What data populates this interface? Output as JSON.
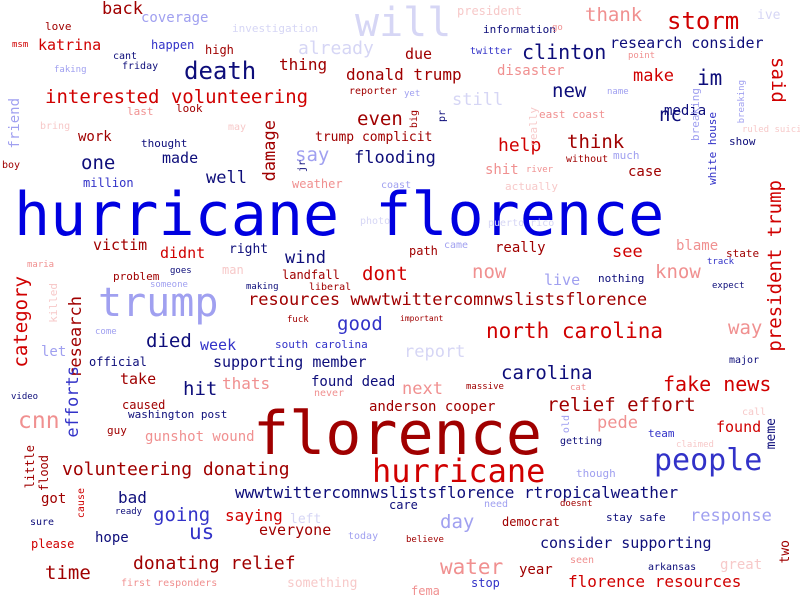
{
  "colors": {
    "dark_blue": "#0d0d7a",
    "mid_blue": "#3232c8",
    "blue": "#0000e0",
    "light_blue": "#a0a0f0",
    "pale_blue": "#d6d6f5",
    "dark_red": "#a00000",
    "red": "#d00000",
    "light_red": "#f09090",
    "pale_red": "#f7c9c9"
  },
  "words": [
    {
      "text": "hurricane florence",
      "color": "blue"
    },
    {
      "text": "florence",
      "color": "dark_red"
    },
    {
      "text": "trump",
      "color": "light_blue"
    },
    {
      "text": "hurricane",
      "color": "red"
    },
    {
      "text": "will",
      "color": "pale_blue"
    },
    {
      "text": "people",
      "color": "mid_blue"
    },
    {
      "text": "storm",
      "color": "red"
    },
    {
      "text": "death",
      "color": "dark_blue"
    },
    {
      "text": "resources wwwtwittercomnwslistsflorence",
      "color": "dark_red"
    },
    {
      "text": "interested volunteering",
      "color": "red"
    },
    {
      "text": "wwwtwittercomnwslistsflorence rtropicalweather",
      "color": "dark_blue"
    },
    {
      "text": "north carolina",
      "color": "red"
    },
    {
      "text": "volunteering donating",
      "color": "dark_red"
    },
    {
      "text": "donating relief",
      "color": "dark_red"
    },
    {
      "text": "fake news",
      "color": "red"
    },
    {
      "text": "relief effort",
      "color": "dark_red"
    },
    {
      "text": "clinton",
      "color": "dark_blue"
    },
    {
      "text": "research consider",
      "color": "dark_blue"
    },
    {
      "text": "thank",
      "color": "light_red"
    },
    {
      "text": "already",
      "color": "pale_blue"
    },
    {
      "text": "back",
      "color": "dark_red"
    },
    {
      "text": "coverage",
      "color": "light_blue"
    },
    {
      "text": "donald trump",
      "color": "dark_red"
    },
    {
      "text": "thing",
      "color": "dark_red"
    },
    {
      "text": "disaster",
      "color": "light_red"
    },
    {
      "text": "make",
      "color": "red"
    },
    {
      "text": "im",
      "color": "dark_blue"
    },
    {
      "text": "new",
      "color": "dark_blue"
    },
    {
      "text": "still",
      "color": "pale_blue"
    },
    {
      "text": "even",
      "color": "dark_red"
    },
    {
      "text": "one",
      "color": "dark_blue"
    },
    {
      "text": "made",
      "color": "dark_blue"
    },
    {
      "text": "well",
      "color": "dark_blue"
    },
    {
      "text": "say",
      "color": "light_blue"
    },
    {
      "text": "flooding",
      "color": "dark_blue"
    },
    {
      "text": "help",
      "color": "red"
    },
    {
      "text": "think",
      "color": "dark_red"
    },
    {
      "text": "nc",
      "color": "dark_blue"
    },
    {
      "text": "media",
      "color": "dark_blue"
    },
    {
      "text": "case",
      "color": "dark_red"
    },
    {
      "text": "work",
      "color": "dark_red"
    },
    {
      "text": "victim",
      "color": "dark_red"
    },
    {
      "text": "didnt",
      "color": "red"
    },
    {
      "text": "right",
      "color": "dark_blue"
    },
    {
      "text": "wind",
      "color": "dark_blue"
    },
    {
      "text": "dont",
      "color": "red"
    },
    {
      "text": "now",
      "color": "light_red"
    },
    {
      "text": "see",
      "color": "red"
    },
    {
      "text": "know",
      "color": "light_red"
    },
    {
      "text": "blame",
      "color": "light_red"
    },
    {
      "text": "really",
      "color": "dark_red"
    },
    {
      "text": "good",
      "color": "mid_blue"
    },
    {
      "text": "died",
      "color": "dark_blue"
    },
    {
      "text": "week",
      "color": "mid_blue"
    },
    {
      "text": "supporting member",
      "color": "dark_blue"
    },
    {
      "text": "report",
      "color": "pale_blue"
    },
    {
      "text": "carolina",
      "color": "dark_blue"
    },
    {
      "text": "way",
      "color": "light_red"
    },
    {
      "text": "hit",
      "color": "dark_blue"
    },
    {
      "text": "thats",
      "color": "light_red"
    },
    {
      "text": "found dead",
      "color": "dark_blue"
    },
    {
      "text": "next",
      "color": "light_red"
    },
    {
      "text": "take",
      "color": "dark_red"
    },
    {
      "text": "anderson cooper",
      "color": "dark_red"
    },
    {
      "text": "pede",
      "color": "light_red"
    },
    {
      "text": "found",
      "color": "red"
    },
    {
      "text": "cnn",
      "color": "light_red"
    },
    {
      "text": "gunshot wound",
      "color": "light_red"
    },
    {
      "text": "going",
      "color": "mid_blue"
    },
    {
      "text": "saying",
      "color": "red"
    },
    {
      "text": "bad",
      "color": "dark_blue"
    },
    {
      "text": "us",
      "color": "mid_blue"
    },
    {
      "text": "everyone",
      "color": "dark_red"
    },
    {
      "text": "day",
      "color": "light_blue"
    },
    {
      "text": "response",
      "color": "light_blue"
    },
    {
      "text": "hope",
      "color": "dark_blue"
    },
    {
      "text": "time",
      "color": "dark_red"
    },
    {
      "text": "water",
      "color": "light_red"
    },
    {
      "text": "consider supporting",
      "color": "dark_blue"
    },
    {
      "text": "year",
      "color": "dark_red"
    },
    {
      "text": "florence resources",
      "color": "red"
    },
    {
      "text": "got",
      "color": "dark_red"
    },
    {
      "text": "please",
      "color": "red"
    },
    {
      "text": "something",
      "color": "pale_red"
    },
    {
      "text": "love",
      "color": "dark_red"
    },
    {
      "text": "katrina",
      "color": "red"
    },
    {
      "text": "happen",
      "color": "mid_blue"
    },
    {
      "text": "high",
      "color": "dark_red"
    },
    {
      "text": "cant",
      "color": "dark_blue"
    },
    {
      "text": "friday",
      "color": "dark_blue"
    },
    {
      "text": "msm",
      "color": "red"
    },
    {
      "text": "faking",
      "color": "light_blue"
    },
    {
      "text": "investigation",
      "color": "pale_blue"
    },
    {
      "text": "president",
      "color": "pale_red"
    },
    {
      "text": "information",
      "color": "dark_blue"
    },
    {
      "text": "twitter",
      "color": "mid_blue"
    },
    {
      "text": "due",
      "color": "dark_red"
    },
    {
      "text": "point",
      "color": "light_red"
    },
    {
      "text": "ive",
      "color": "pale_blue"
    },
    {
      "text": "last",
      "color": "light_red"
    },
    {
      "text": "look",
      "color": "dark_red"
    },
    {
      "text": "reporter",
      "color": "dark_red"
    },
    {
      "text": "yet",
      "color": "light_blue"
    },
    {
      "text": "name",
      "color": "light_blue"
    },
    {
      "text": "trump complicit",
      "color": "dark_red"
    },
    {
      "text": "liberal",
      "color": "dark_red"
    },
    {
      "text": "east coast",
      "color": "light_red"
    },
    {
      "text": "thought",
      "color": "dark_blue"
    },
    {
      "text": "shit",
      "color": "light_red"
    },
    {
      "text": "river",
      "color": "light_red"
    },
    {
      "text": "without",
      "color": "dark_red"
    },
    {
      "text": "much",
      "color": "light_blue"
    },
    {
      "text": "show",
      "color": "dark_blue"
    },
    {
      "text": "million",
      "color": "mid_blue"
    },
    {
      "text": "weather",
      "color": "light_red"
    },
    {
      "text": "coast",
      "color": "light_blue"
    },
    {
      "text": "actually",
      "color": "pale_red"
    },
    {
      "text": "photo",
      "color": "pale_blue"
    },
    {
      "text": "path",
      "color": "dark_red"
    },
    {
      "text": "came",
      "color": "light_blue"
    },
    {
      "text": "state",
      "color": "dark_red"
    },
    {
      "text": "track",
      "color": "mid_blue"
    },
    {
      "text": "maria",
      "color": "light_red"
    },
    {
      "text": "problem",
      "color": "dark_red"
    },
    {
      "text": "goes",
      "color": "dark_blue"
    },
    {
      "text": "man",
      "color": "pale_red"
    },
    {
      "text": "landfall",
      "color": "dark_red"
    },
    {
      "text": "someone",
      "color": "light_blue"
    },
    {
      "text": "making",
      "color": "dark_blue"
    },
    {
      "text": "live",
      "color": "light_blue"
    },
    {
      "text": "nothing",
      "color": "dark_blue"
    },
    {
      "text": "expect",
      "color": "dark_blue"
    },
    {
      "text": "fuck",
      "color": "dark_red"
    },
    {
      "text": "important",
      "color": "dark_red"
    },
    {
      "text": "come",
      "color": "light_blue"
    },
    {
      "text": "let",
      "color": "light_blue"
    },
    {
      "text": "south carolina",
      "color": "mid_blue"
    },
    {
      "text": "official",
      "color": "dark_blue"
    },
    {
      "text": "major",
      "color": "dark_blue"
    },
    {
      "text": "caused",
      "color": "dark_red"
    },
    {
      "text": "never",
      "color": "light_red"
    },
    {
      "text": "massive",
      "color": "dark_red"
    },
    {
      "text": "cat",
      "color": "light_red"
    },
    {
      "text": "washington post",
      "color": "dark_blue"
    },
    {
      "text": "video",
      "color": "dark_blue"
    },
    {
      "text": "guy",
      "color": "dark_red"
    },
    {
      "text": "team",
      "color": "mid_blue"
    },
    {
      "text": "claimed",
      "color": "pale_red"
    },
    {
      "text": "getting",
      "color": "dark_blue"
    },
    {
      "text": "call",
      "color": "pale_red"
    },
    {
      "text": "though",
      "color": "light_blue"
    },
    {
      "text": "left",
      "color": "pale_blue"
    },
    {
      "text": "need",
      "color": "light_blue"
    },
    {
      "text": "care",
      "color": "dark_blue"
    },
    {
      "text": "doesnt",
      "color": "dark_red"
    },
    {
      "text": "stay safe",
      "color": "dark_blue"
    },
    {
      "text": "ready",
      "color": "dark_blue"
    },
    {
      "text": "sure",
      "color": "dark_blue"
    },
    {
      "text": "democrat",
      "color": "dark_red"
    },
    {
      "text": "today",
      "color": "light_blue"
    },
    {
      "text": "believe",
      "color": "dark_red"
    },
    {
      "text": "seen",
      "color": "light_red"
    },
    {
      "text": "great",
      "color": "pale_red"
    },
    {
      "text": "arkansas",
      "color": "dark_blue"
    },
    {
      "text": "first responders",
      "color": "light_red"
    },
    {
      "text": "stop",
      "color": "mid_blue"
    },
    {
      "text": "fema",
      "color": "light_red"
    },
    {
      "text": "boy",
      "color": "dark_red"
    },
    {
      "text": "friend",
      "color": "light_blue"
    },
    {
      "text": "bring",
      "color": "pale_red"
    },
    {
      "text": "may",
      "color": "pale_red"
    },
    {
      "text": "said",
      "color": "red"
    },
    {
      "text": "president trump",
      "color": "red"
    },
    {
      "text": "category",
      "color": "red"
    },
    {
      "text": "research",
      "color": "dark_red"
    },
    {
      "text": "efforts",
      "color": "mid_blue"
    },
    {
      "text": "damage",
      "color": "dark_red"
    },
    {
      "text": "two",
      "color": "dark_red"
    },
    {
      "text": "meme",
      "color": "dark_blue"
    },
    {
      "text": "white house",
      "color": "mid_blue"
    },
    {
      "text": "breaking",
      "color": "light_blue"
    },
    {
      "text": "puerto rico",
      "color": "pale_blue"
    },
    {
      "text": "really",
      "color": "pale_red"
    },
    {
      "text": "big",
      "color": "dark_red"
    },
    {
      "text": "jr",
      "color": "dark_blue"
    },
    {
      "text": "pr",
      "color": "dark_blue"
    },
    {
      "text": "killed",
      "color": "pale_red"
    },
    {
      "text": "flood",
      "color": "dark_red"
    },
    {
      "text": "little",
      "color": "dark_red"
    },
    {
      "text": "cause",
      "color": "red"
    },
    {
      "text": "old",
      "color": "light_blue"
    },
    {
      "text": "go",
      "color": "light_red"
    },
    {
      "text": "ruled suicide",
      "color": "pale_red"
    },
    {
      "text": "early",
      "color": "pale_red"
    }
  ]
}
